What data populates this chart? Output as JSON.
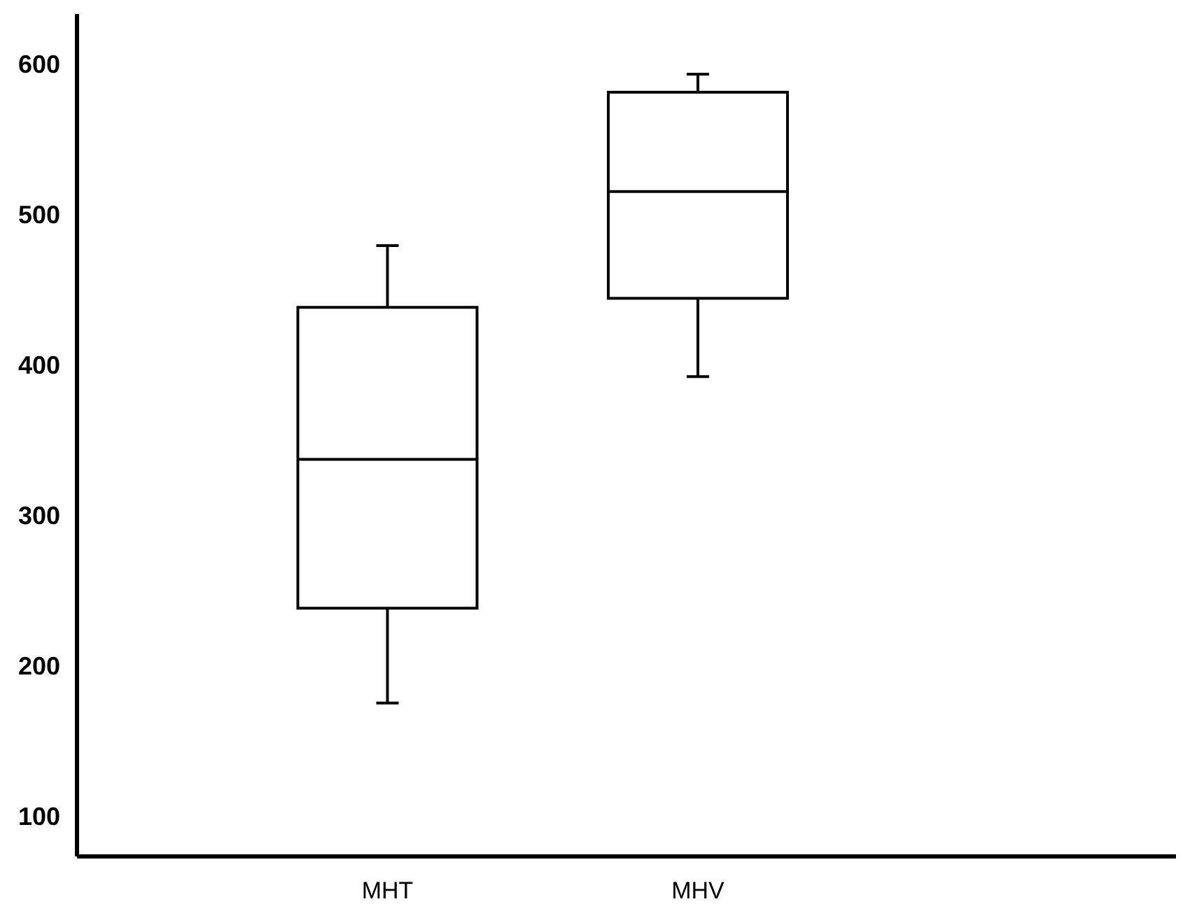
{
  "chart_data": {
    "type": "box",
    "categories": [
      "MHT",
      "MHV"
    ],
    "boxes": [
      {
        "low": 175,
        "q1": 238,
        "median": 337,
        "q3": 438,
        "high": 479
      },
      {
        "low": 392,
        "q1": 444,
        "median": 515,
        "q3": 581,
        "high": 593
      }
    ],
    "ylim": [
      73,
      633
    ],
    "yticks": [
      100,
      200,
      300,
      400,
      500,
      600
    ],
    "grid": false
  }
}
